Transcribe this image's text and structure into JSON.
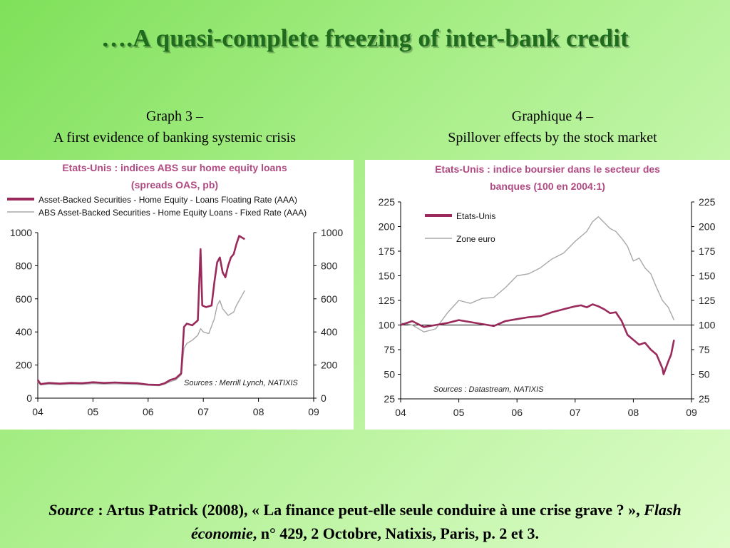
{
  "slide": {
    "title": "….A quasi-complete freezing of inter-bank credit"
  },
  "caption_left": {
    "line1": "Graph 3 –",
    "line2": "A first evidence of banking systemic crisis"
  },
  "caption_right": {
    "line1": "Graphique 4 –",
    "line2": "Spillover effects by the stock market"
  },
  "source": {
    "label": "Source",
    "text1": " : Artus Patrick (2008), « La finance peut-elle seule conduire à une crise grave ? », ",
    "journal": "Flash économie",
    "text2": ", n° 429, 2 Octobre, Natixis, Paris, p. 2 et 3."
  },
  "colors": {
    "accent_series": "#9b2a5c",
    "grey_series": "#a8a8a8",
    "chart_title": "#b04a82",
    "slide_title": "#1e6b1e"
  },
  "chart_data": [
    {
      "type": "line",
      "title": "Etats-Unis : indices ABS sur home equity loans",
      "subtitle": "(spreads OAS, pb)",
      "source_note": "Sources : Merrill Lynch, NATIXIS",
      "x_ticks": [
        "04",
        "05",
        "06",
        "07",
        "08",
        "09"
      ],
      "x_range": [
        2004,
        2009
      ],
      "ylim": [
        0,
        1000
      ],
      "y_ticks": [
        0,
        200,
        400,
        600,
        800,
        1000
      ],
      "grid": false,
      "legend_position": "top",
      "series": [
        {
          "name": "Asset-Backed Securities - Home Equity - Loans Floating Rate (AAA)",
          "color": "#9b2a5c",
          "points": [
            [
              2004.0,
              110
            ],
            [
              2004.05,
              85
            ],
            [
              2004.2,
              92
            ],
            [
              2004.4,
              88
            ],
            [
              2004.6,
              92
            ],
            [
              2004.8,
              90
            ],
            [
              2005.0,
              96
            ],
            [
              2005.2,
              92
            ],
            [
              2005.4,
              95
            ],
            [
              2005.6,
              92
            ],
            [
              2005.8,
              90
            ],
            [
              2006.0,
              82
            ],
            [
              2006.2,
              80
            ],
            [
              2006.3,
              90
            ],
            [
              2006.4,
              110
            ],
            [
              2006.5,
              120
            ],
            [
              2006.6,
              150
            ],
            [
              2006.65,
              430
            ],
            [
              2006.7,
              450
            ],
            [
              2006.8,
              440
            ],
            [
              2006.9,
              470
            ],
            [
              2006.95,
              900
            ],
            [
              2006.98,
              560
            ],
            [
              2007.05,
              550
            ],
            [
              2007.15,
              560
            ],
            [
              2007.2,
              700
            ],
            [
              2007.25,
              820
            ],
            [
              2007.3,
              850
            ],
            [
              2007.35,
              760
            ],
            [
              2007.4,
              730
            ],
            [
              2007.45,
              800
            ],
            [
              2007.5,
              850
            ],
            [
              2007.55,
              870
            ],
            [
              2007.6,
              930
            ],
            [
              2007.65,
              980
            ],
            [
              2007.75,
              960
            ]
          ]
        },
        {
          "name": "ABS Asset-Backed Securities - Home Equity Loans - Fixed Rate (AAA)",
          "color": "#a8a8a8",
          "points": [
            [
              2004.0,
              100
            ],
            [
              2004.05,
              80
            ],
            [
              2004.2,
              85
            ],
            [
              2004.4,
              82
            ],
            [
              2004.6,
              85
            ],
            [
              2004.8,
              83
            ],
            [
              2005.0,
              88
            ],
            [
              2005.2,
              85
            ],
            [
              2005.4,
              87
            ],
            [
              2005.6,
              85
            ],
            [
              2005.8,
              83
            ],
            [
              2006.0,
              78
            ],
            [
              2006.2,
              75
            ],
            [
              2006.3,
              85
            ],
            [
              2006.4,
              100
            ],
            [
              2006.5,
              110
            ],
            [
              2006.6,
              140
            ],
            [
              2006.65,
              300
            ],
            [
              2006.7,
              330
            ],
            [
              2006.8,
              350
            ],
            [
              2006.9,
              380
            ],
            [
              2006.95,
              420
            ],
            [
              2007.0,
              400
            ],
            [
              2007.1,
              390
            ],
            [
              2007.2,
              480
            ],
            [
              2007.25,
              560
            ],
            [
              2007.3,
              590
            ],
            [
              2007.35,
              540
            ],
            [
              2007.45,
              500
            ],
            [
              2007.55,
              520
            ],
            [
              2007.6,
              560
            ],
            [
              2007.7,
              620
            ],
            [
              2007.75,
              650
            ]
          ]
        }
      ]
    },
    {
      "type": "line",
      "title": "Etats-Unis : indice boursier dans le secteur des",
      "subtitle": "banques (100 en 2004:1)",
      "source_note": "Sources : Datastream, NATIXIS",
      "x_ticks": [
        "04",
        "05",
        "06",
        "07",
        "08",
        "09"
      ],
      "x_range": [
        2004,
        2009
      ],
      "ylim": [
        25,
        225
      ],
      "y_ticks": [
        25,
        50,
        75,
        100,
        125,
        150,
        175,
        200,
        225
      ],
      "reference_line": 100,
      "grid": false,
      "legend_position": "top-left",
      "series": [
        {
          "name": "Etats-Unis",
          "color": "#9b2a5c",
          "points": [
            [
              2004.0,
              100
            ],
            [
              2004.2,
              104
            ],
            [
              2004.4,
              98
            ],
            [
              2004.6,
              100
            ],
            [
              2004.8,
              102
            ],
            [
              2005.0,
              105
            ],
            [
              2005.2,
              103
            ],
            [
              2005.4,
              101
            ],
            [
              2005.6,
              99
            ],
            [
              2005.8,
              104
            ],
            [
              2006.0,
              106
            ],
            [
              2006.2,
              108
            ],
            [
              2006.4,
              109
            ],
            [
              2006.6,
              113
            ],
            [
              2006.8,
              116
            ],
            [
              2007.0,
              119
            ],
            [
              2007.1,
              120
            ],
            [
              2007.2,
              118
            ],
            [
              2007.3,
              121
            ],
            [
              2007.4,
              119
            ],
            [
              2007.5,
              116
            ],
            [
              2007.6,
              112
            ],
            [
              2007.7,
              113
            ],
            [
              2007.8,
              104
            ],
            [
              2007.9,
              90
            ],
            [
              2008.0,
              85
            ],
            [
              2008.1,
              80
            ],
            [
              2008.2,
              82
            ],
            [
              2008.3,
              75
            ],
            [
              2008.4,
              70
            ],
            [
              2008.5,
              56
            ],
            [
              2008.52,
              50
            ],
            [
              2008.6,
              63
            ],
            [
              2008.65,
              70
            ],
            [
              2008.7,
              85
            ]
          ]
        },
        {
          "name": "Zone euro",
          "color": "#a8a8a8",
          "points": [
            [
              2004.0,
              102
            ],
            [
              2004.2,
              100
            ],
            [
              2004.4,
              93
            ],
            [
              2004.6,
              96
            ],
            [
              2004.8,
              112
            ],
            [
              2005.0,
              125
            ],
            [
              2005.2,
              122
            ],
            [
              2005.4,
              127
            ],
            [
              2005.6,
              128
            ],
            [
              2005.8,
              138
            ],
            [
              2006.0,
              150
            ],
            [
              2006.2,
              152
            ],
            [
              2006.4,
              158
            ],
            [
              2006.6,
              167
            ],
            [
              2006.8,
              173
            ],
            [
              2007.0,
              185
            ],
            [
              2007.2,
              195
            ],
            [
              2007.3,
              205
            ],
            [
              2007.4,
              210
            ],
            [
              2007.5,
              204
            ],
            [
              2007.6,
              198
            ],
            [
              2007.7,
              195
            ],
            [
              2007.8,
              188
            ],
            [
              2007.9,
              180
            ],
            [
              2008.0,
              165
            ],
            [
              2008.1,
              168
            ],
            [
              2008.2,
              158
            ],
            [
              2008.3,
              152
            ],
            [
              2008.4,
              138
            ],
            [
              2008.5,
              125
            ],
            [
              2008.6,
              118
            ],
            [
              2008.7,
              105
            ]
          ]
        }
      ]
    }
  ]
}
